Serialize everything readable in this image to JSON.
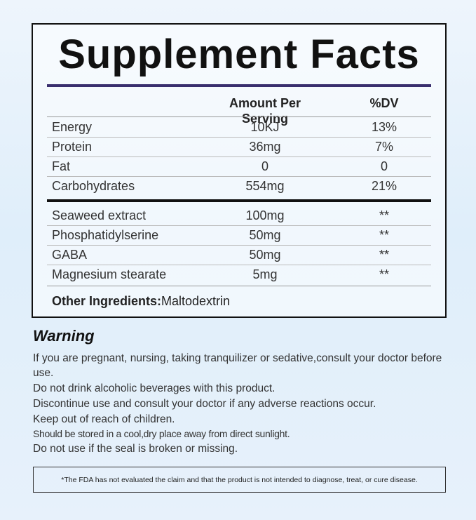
{
  "panel": {
    "title": "Supplement Facts",
    "columns": [
      "Amount Per Serving",
      "%DV"
    ],
    "nutrients": [
      [
        "Energy",
        "10KJ",
        "13%"
      ],
      [
        "Protein",
        "36mg",
        "7%"
      ],
      [
        "Fat",
        "0",
        "0"
      ],
      [
        "Carbohydrates",
        "554mg",
        "21%"
      ]
    ],
    "ingredients": [
      [
        "Seaweed extract",
        "100mg",
        "**"
      ],
      [
        "Phosphatidylserine",
        "50mg",
        "**"
      ],
      [
        "GABA",
        "50mg",
        "**"
      ],
      [
        "Magnesium stearate",
        "5mg",
        "**"
      ]
    ],
    "other_label": "Other Ingredients:",
    "other_value": "Maltodextrin"
  },
  "warning": {
    "title": "Warning",
    "lines": [
      "If you are pregnant, nursing, taking tranquilizer or sedative,consult your doctor before use.",
      "Do not drink alcoholic beverages with this product.",
      "Discontinue use and consult your doctor if any adverse reactions occur.",
      "Keep out of reach of children.",
      "Should be stored in a cool,dry place away from direct sunlight.",
      "Do not use if the seal is broken or missing."
    ]
  },
  "fda_note": "*The FDA has not evaluated the claim and that the product is not intended to diagnose, treat, or cure disease."
}
